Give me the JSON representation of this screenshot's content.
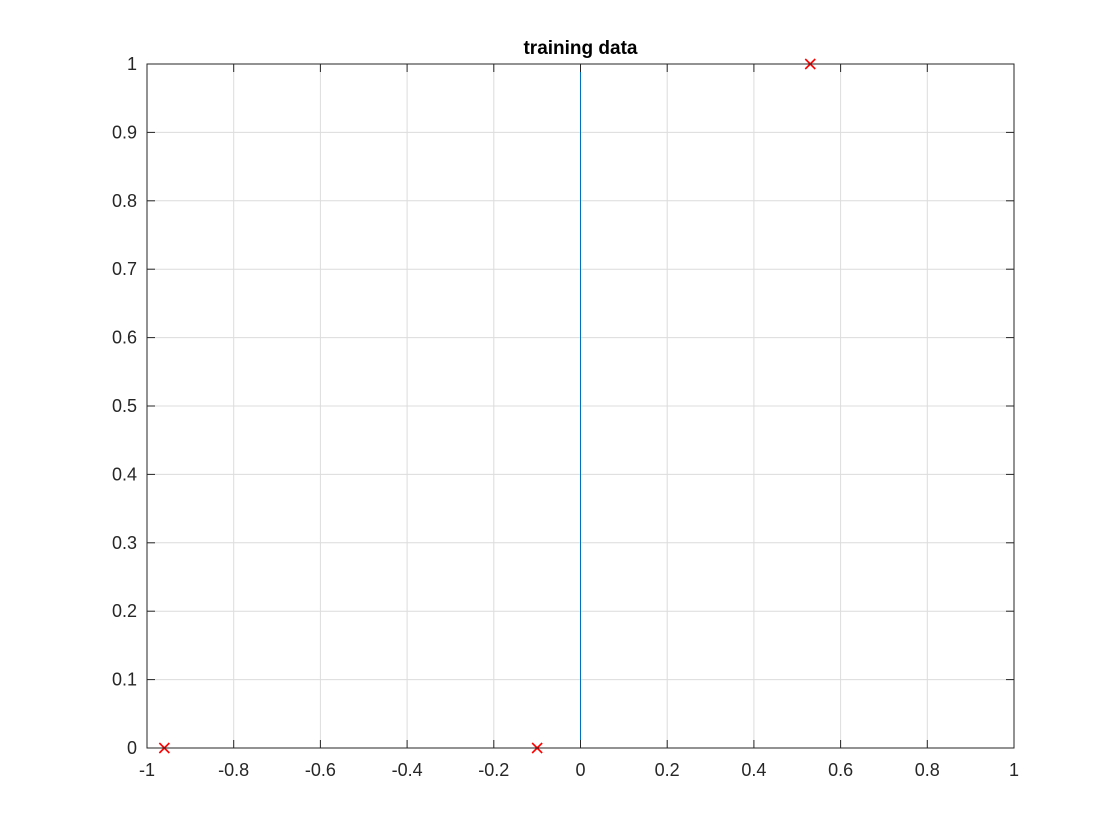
{
  "chart_data": {
    "type": "line",
    "title": "training data",
    "xlabel": "",
    "ylabel": "",
    "xlim": [
      -1,
      1
    ],
    "ylim": [
      0,
      1
    ],
    "grid": true,
    "x_ticks": [
      -1,
      -0.8,
      -0.6,
      -0.4,
      -0.2,
      0,
      0.2,
      0.4,
      0.6,
      0.8,
      1
    ],
    "x_tick_labels": [
      "-1",
      "-0.8",
      "-0.6",
      "-0.4",
      "-0.2",
      "0",
      "0.2",
      "0.4",
      "0.6",
      "0.8",
      "1"
    ],
    "y_ticks": [
      0,
      0.1,
      0.2,
      0.3,
      0.4,
      0.5,
      0.6,
      0.7,
      0.8,
      0.9,
      1
    ],
    "y_tick_labels": [
      "0",
      "0.1",
      "0.2",
      "0.3",
      "0.4",
      "0.5",
      "0.6",
      "0.7",
      "0.8",
      "0.9",
      "1"
    ],
    "series": [
      {
        "kind": "line",
        "color": "#0072bd",
        "x": [
          -1,
          0,
          0,
          1
        ],
        "y": [
          0,
          0,
          1,
          1
        ]
      },
      {
        "kind": "scatter",
        "marker": "x",
        "color": "#ff0000",
        "x": [
          -0.96,
          -0.1,
          0.53
        ],
        "y": [
          0,
          0,
          1
        ]
      }
    ]
  }
}
